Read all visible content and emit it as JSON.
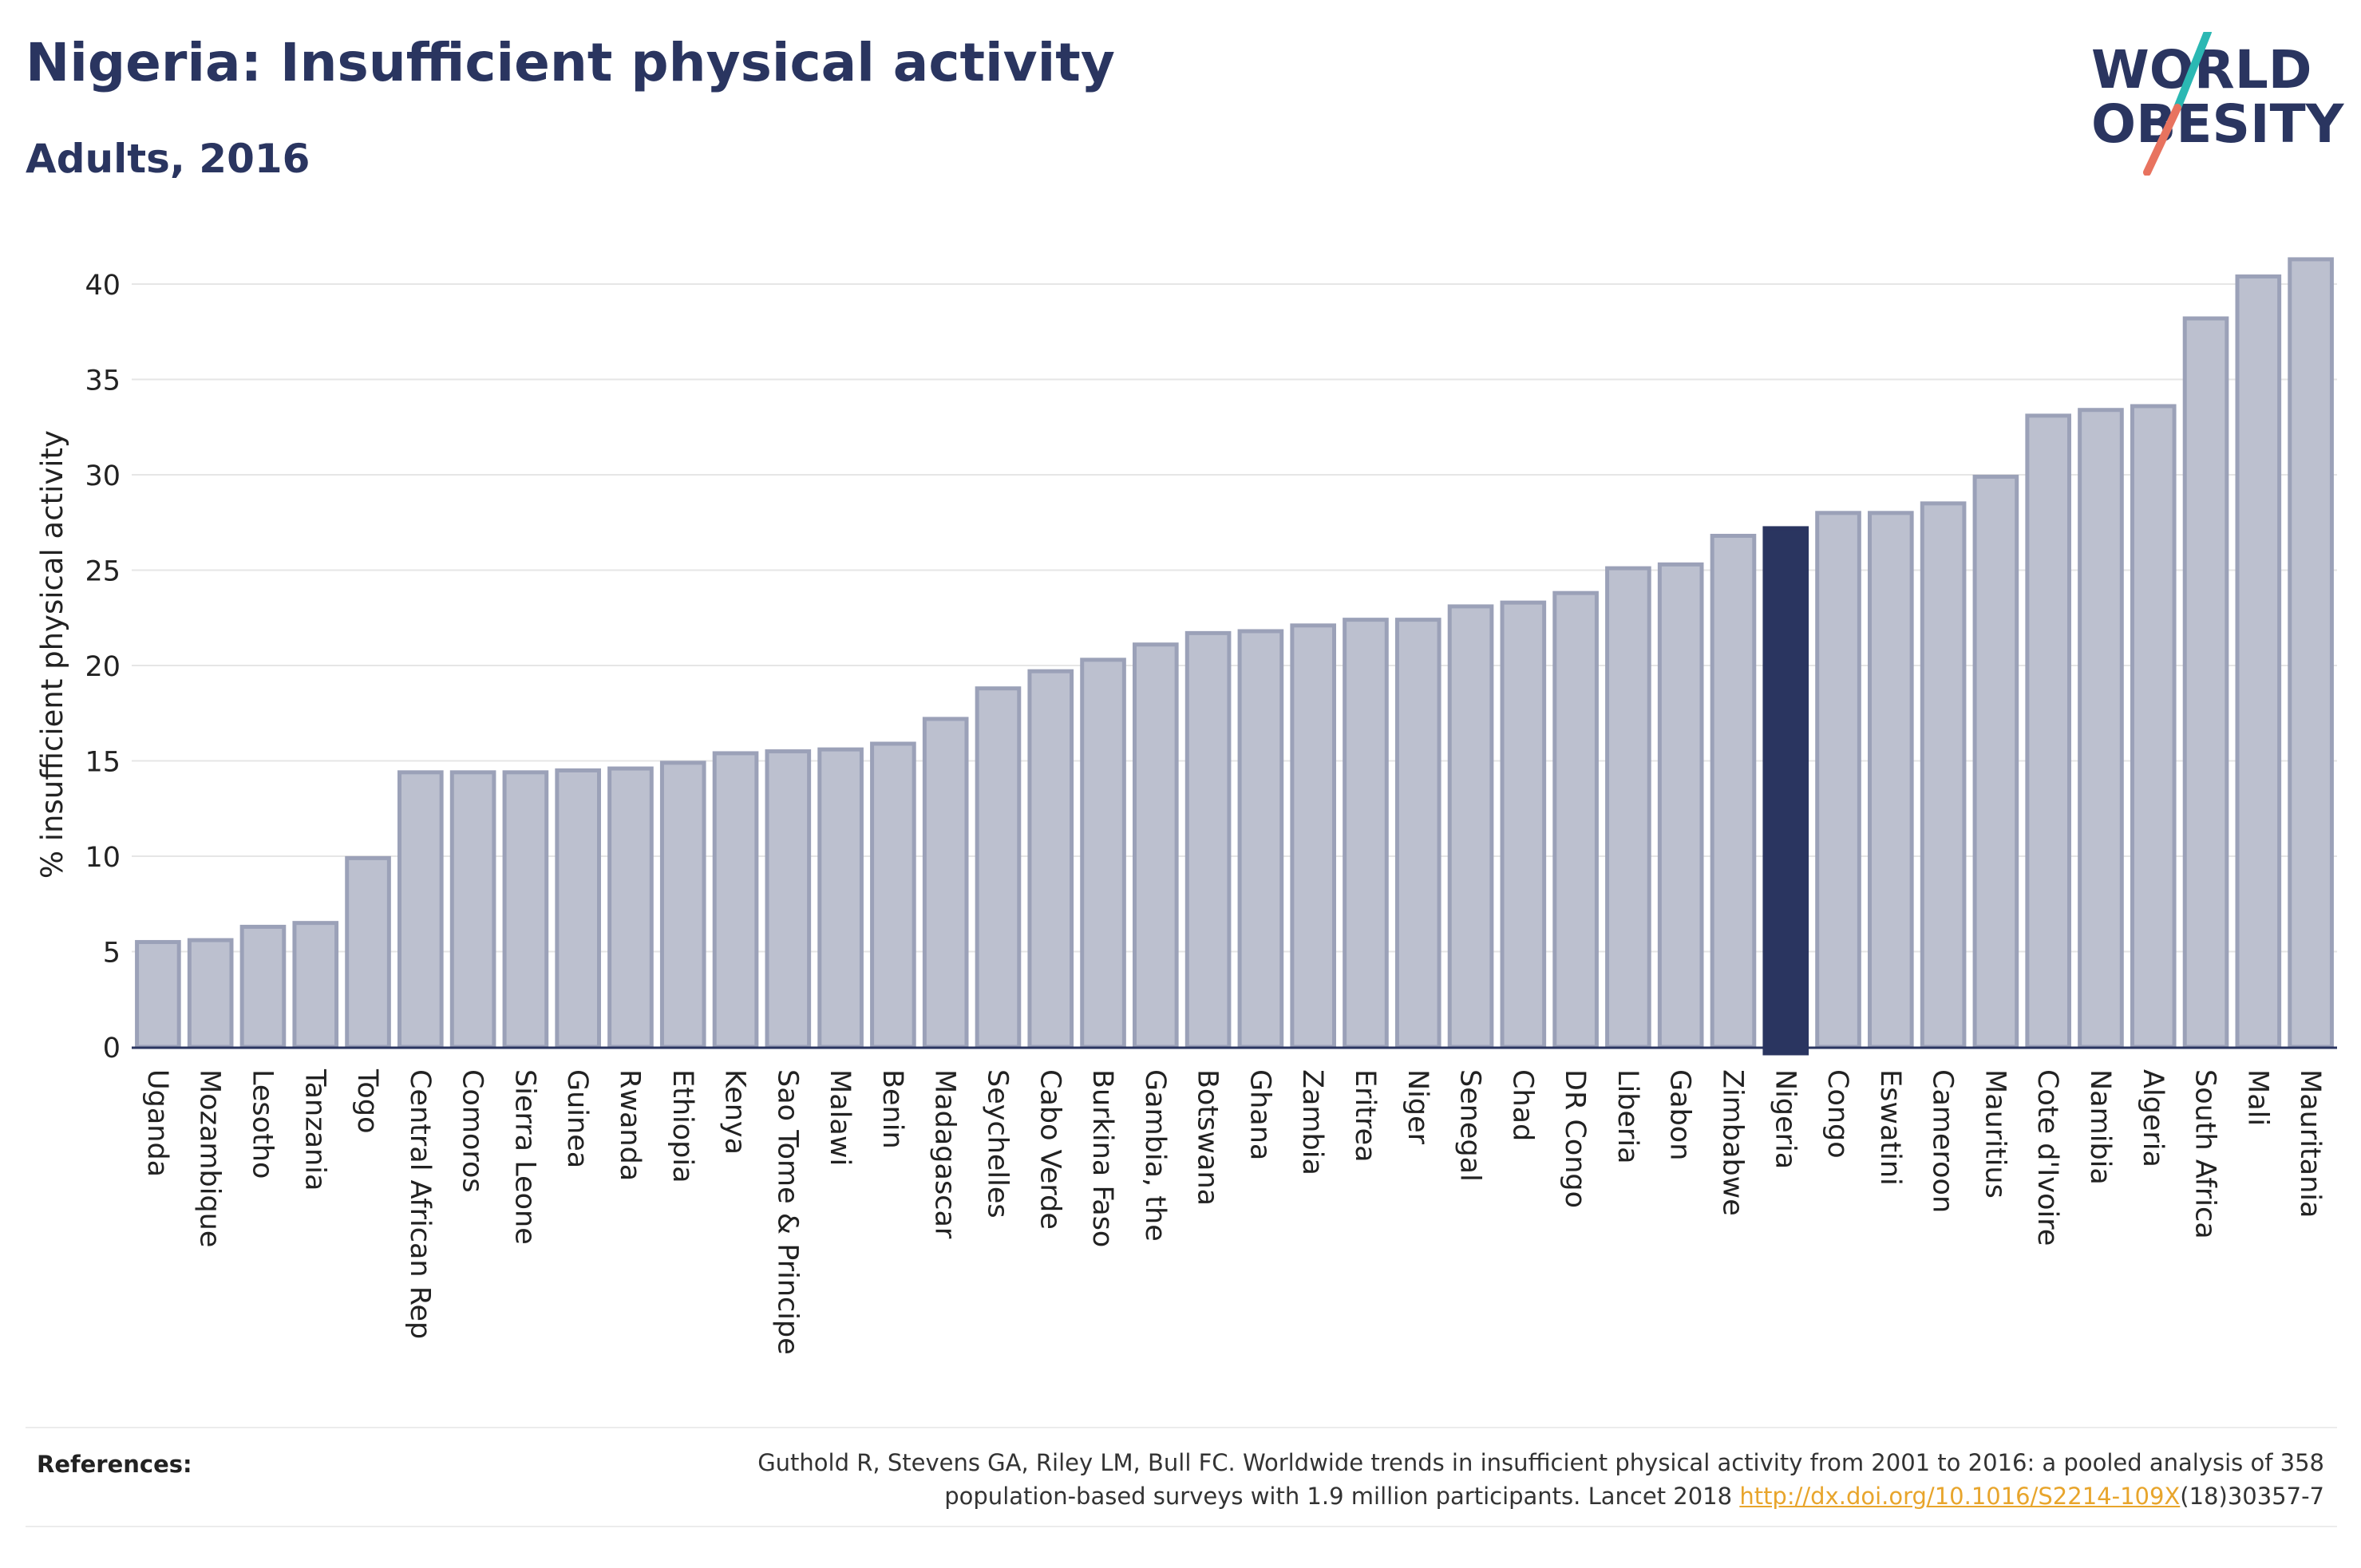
{
  "header": {
    "title": "Nigeria: Insufficient physical activity",
    "subtitle": "Adults, 2016"
  },
  "logo": {
    "line1": "WORLD",
    "line2": "OBESITY",
    "colors": {
      "text": "#2a3560",
      "slash_teal": "#2bb8b3",
      "slash_coral": "#e8735f"
    }
  },
  "colors": {
    "bar_fill": "#bcc0cf",
    "bar_stroke": "#9ba1b8",
    "highlight": "#2a3560",
    "axis": "#2a3560",
    "grid": "#e6e6e6"
  },
  "chart_data": {
    "type": "bar",
    "title": "Nigeria: Insufficient physical activity",
    "subtitle": "Adults, 2016",
    "xlabel": "",
    "ylabel": "% insufficient physical activity",
    "ylim": [
      0,
      42
    ],
    "yticks": [
      0,
      5,
      10,
      15,
      20,
      25,
      30,
      35,
      40
    ],
    "grid": true,
    "highlight_category": "Nigeria",
    "categories": [
      "Uganda",
      "Mozambique",
      "Lesotho",
      "Tanzania",
      "Togo",
      "Central African Rep",
      "Comoros",
      "Sierra Leone",
      "Guinea",
      "Rwanda",
      "Ethiopia",
      "Kenya",
      "Sao Tome & Principe",
      "Malawi",
      "Benin",
      "Madagascar",
      "Seychelles",
      "Cabo Verde",
      "Burkina Faso",
      "Gambia, the",
      "Botswana",
      "Ghana",
      "Zambia",
      "Eritrea",
      "Niger",
      "Senegal",
      "Chad",
      "DR Congo",
      "Liberia",
      "Gabon",
      "Zimbabwe",
      "Nigeria",
      "Congo",
      "Eswatini",
      "Cameroon",
      "Mauritius",
      "Cote d'Ivoire",
      "Namibia",
      "Algeria",
      "South Africa",
      "Mali",
      "Mauritania"
    ],
    "values": [
      5.5,
      5.6,
      6.3,
      6.5,
      9.9,
      14.4,
      14.4,
      14.4,
      14.5,
      14.6,
      14.9,
      15.4,
      15.5,
      15.6,
      15.9,
      17.2,
      18.8,
      19.7,
      20.3,
      21.1,
      21.7,
      21.8,
      22.1,
      22.4,
      22.4,
      23.1,
      23.3,
      23.8,
      25.1,
      25.3,
      26.8,
      27.2,
      28.0,
      28.0,
      28.5,
      29.9,
      33.1,
      33.4,
      33.6,
      38.2,
      40.4,
      41.3
    ]
  },
  "references": {
    "label": "References:",
    "line1": "Guthold R, Stevens GA, Riley LM, Bull FC. Worldwide trends in insufficient physical activity from 2001 to 2016: a pooled analysis of 358",
    "line2_before": "population-based surveys with 1.9 million participants. Lancet 2018 ",
    "link": "http://dx.doi.org/10.1016/S2214-109X",
    "line2_after": "(18)30357-7"
  }
}
